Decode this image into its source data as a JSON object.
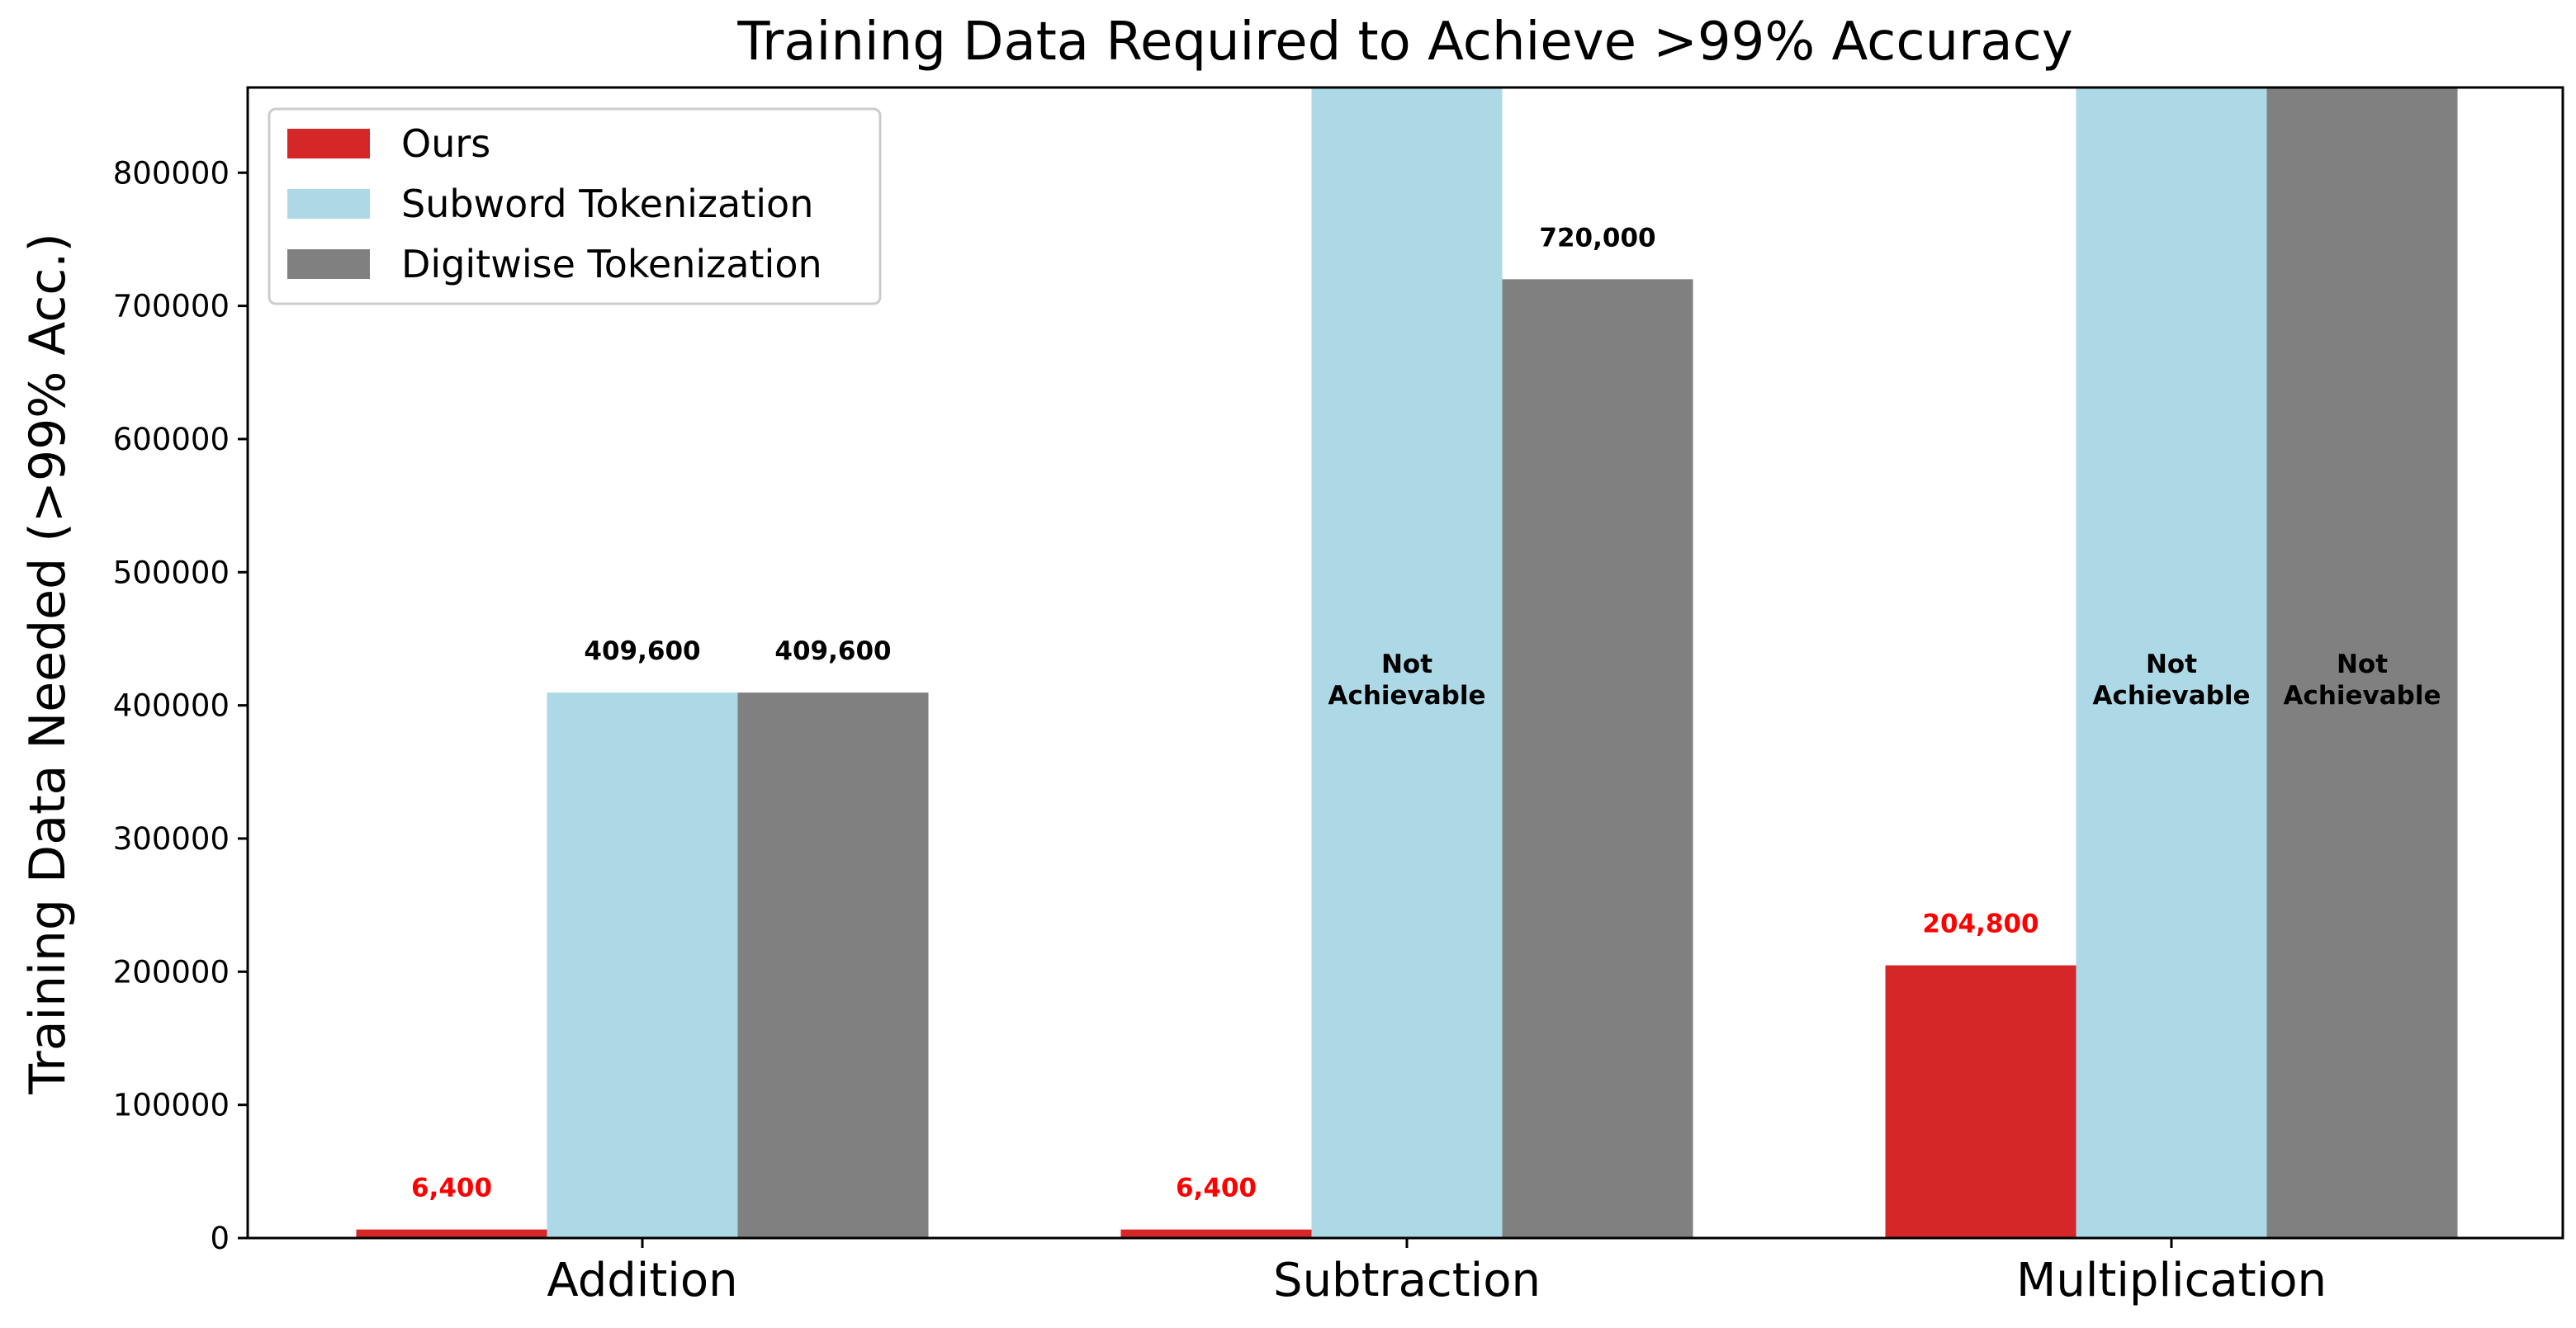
{
  "chart_data": {
    "type": "bar",
    "title": "Training Data Required to Achieve >99% Accuracy",
    "xlabel": "",
    "ylabel": "Training Data Needed (>99% Acc.)",
    "categories": [
      "Addition",
      "Subtraction",
      "Multiplication"
    ],
    "ylim": [
      0,
      864000
    ],
    "yticks": [
      0,
      100000,
      200000,
      300000,
      400000,
      500000,
      600000,
      700000,
      800000
    ],
    "grid": false,
    "legend_position": "top-left",
    "series": [
      {
        "name": "Ours",
        "color": "#d62728",
        "label_color": "#ff0000",
        "values": [
          6400,
          6400,
          204800
        ],
        "labels": [
          "6,400",
          "6,400",
          "204,800"
        ],
        "achievable": [
          true,
          true,
          true
        ]
      },
      {
        "name": "Subword Tokenization",
        "color": "#add8e6",
        "label_color": "#000000",
        "values": [
          409600,
          null,
          null
        ],
        "labels": [
          "409,600",
          "Not\nAchievable",
          "Not\nAchievable"
        ],
        "achievable": [
          true,
          false,
          false
        ]
      },
      {
        "name": "Digitwise Tokenization",
        "color": "#808080",
        "label_color": "#000000",
        "values": [
          409600,
          720000,
          null
        ],
        "labels": [
          "409,600",
          "720,000",
          "Not\nAchievable"
        ],
        "achievable": [
          true,
          true,
          false
        ]
      }
    ]
  }
}
